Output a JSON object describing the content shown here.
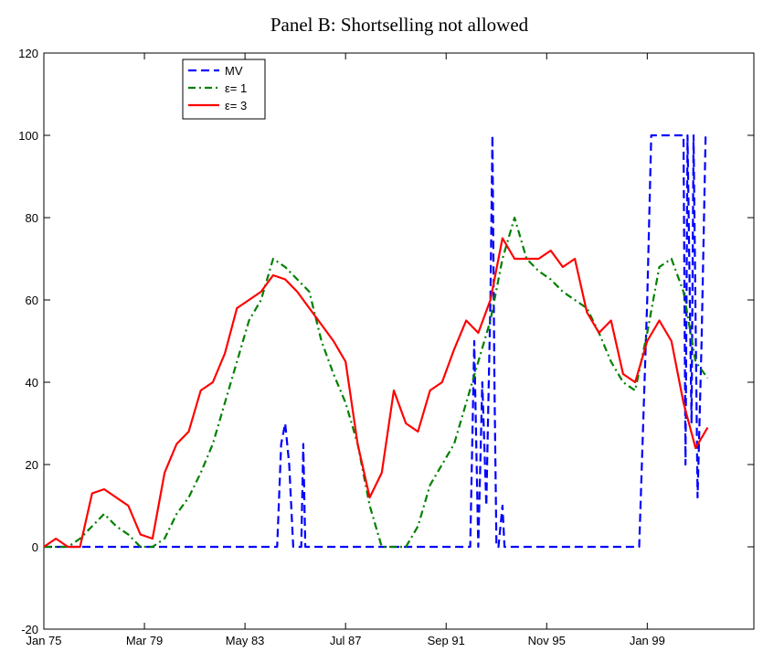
{
  "chart_data": {
    "type": "line",
    "title": "Panel B: Shortselling not allowed",
    "xlim": [
      0,
      353
    ],
    "xticks": [
      {
        "value": 0,
        "label": "Jan 75"
      },
      {
        "value": 50,
        "label": "Mar 79"
      },
      {
        "value": 100,
        "label": "May 83"
      },
      {
        "value": 150,
        "label": "Jul 87"
      },
      {
        "value": 200,
        "label": "Sep 91"
      },
      {
        "value": 250,
        "label": "Nov 95"
      },
      {
        "value": 300,
        "label": "Jan 99"
      }
    ],
    "ylim": [
      -20,
      120
    ],
    "yticks": [
      -20,
      0,
      20,
      40,
      60,
      80,
      100,
      120
    ],
    "series": [
      {
        "name": "MV",
        "color": "#0000ff",
        "linestyle": "dashed",
        "x": [
          0,
          116,
          118,
          120,
          122,
          124,
          128,
          129,
          130,
          212,
          214,
          216,
          218,
          220,
          222,
          223,
          224,
          225,
          226,
          228,
          229,
          296,
          298,
          300,
          302,
          318,
          319,
          320,
          322,
          323,
          325,
          327,
          329,
          330
        ],
        "values": [
          0,
          0,
          25,
          30,
          20,
          0,
          0,
          25,
          0,
          0,
          50,
          0,
          40,
          10,
          60,
          100,
          40,
          0,
          0,
          10,
          0,
          0,
          30,
          60,
          100,
          100,
          20,
          100,
          30,
          100,
          12,
          50,
          100,
          100
        ]
      },
      {
        "name": "ε= 1",
        "color": "#008000",
        "linestyle": "dashdot",
        "x": [
          0,
          6,
          12,
          18,
          24,
          30,
          36,
          42,
          48,
          54,
          60,
          66,
          72,
          78,
          84,
          90,
          96,
          102,
          108,
          114,
          120,
          126,
          132,
          138,
          144,
          150,
          156,
          162,
          168,
          174,
          180,
          186,
          192,
          198,
          204,
          210,
          216,
          222,
          228,
          234,
          240,
          246,
          252,
          258,
          264,
          270,
          276,
          282,
          288,
          294,
          300,
          306,
          312,
          318,
          324,
          330
        ],
        "values": [
          0,
          0,
          0,
          2,
          5,
          8,
          5,
          3,
          0,
          0,
          2,
          8,
          12,
          18,
          25,
          35,
          45,
          55,
          60,
          70,
          68,
          65,
          62,
          50,
          42,
          35,
          25,
          10,
          0,
          0,
          0,
          5,
          15,
          20,
          25,
          35,
          45,
          55,
          70,
          80,
          70,
          67,
          65,
          62,
          60,
          58,
          52,
          45,
          40,
          38,
          52,
          68,
          70,
          62,
          45,
          41
        ]
      },
      {
        "name": "ε= 3",
        "color": "#ff0000",
        "linestyle": "solid",
        "x": [
          0,
          6,
          12,
          18,
          24,
          30,
          36,
          42,
          48,
          54,
          60,
          66,
          72,
          78,
          84,
          90,
          96,
          102,
          108,
          114,
          120,
          126,
          132,
          138,
          144,
          150,
          156,
          162,
          168,
          174,
          180,
          186,
          192,
          198,
          204,
          210,
          216,
          222,
          228,
          234,
          240,
          246,
          252,
          258,
          264,
          270,
          276,
          282,
          288,
          294,
          300,
          306,
          312,
          318,
          324,
          330
        ],
        "values": [
          0,
          2,
          0,
          0,
          13,
          14,
          12,
          10,
          3,
          2,
          18,
          25,
          28,
          38,
          40,
          47,
          58,
          60,
          62,
          66,
          65,
          62,
          58,
          54,
          50,
          45,
          25,
          12,
          18,
          38,
          30,
          28,
          38,
          40,
          48,
          55,
          52,
          60,
          75,
          70,
          70,
          70,
          72,
          68,
          70,
          57,
          52,
          55,
          42,
          40,
          50,
          55,
          50,
          35,
          24,
          29
        ]
      }
    ]
  }
}
